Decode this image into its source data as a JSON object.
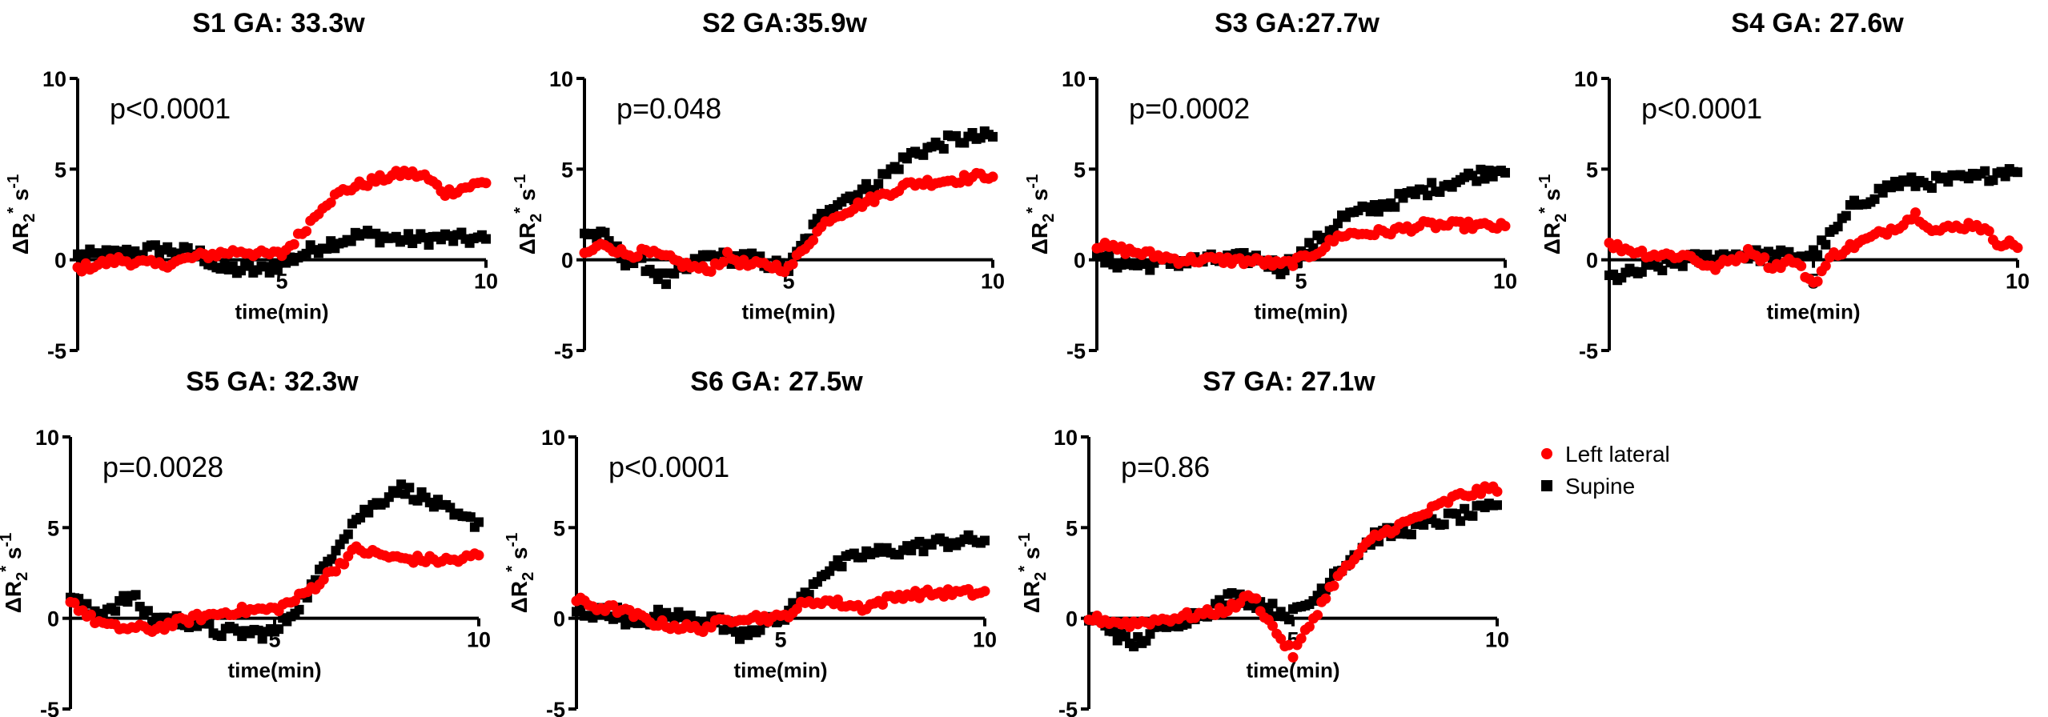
{
  "chart_data": [
    {
      "type": "scatter",
      "title": "S1 GA: 33.3w",
      "pvalue": "p<0.0001",
      "xlabel": "time(min)",
      "ylabel": "ΔR2* s-1",
      "xlim": [
        0,
        10
      ],
      "ylim": [
        -5,
        10
      ],
      "xticks": [
        5,
        10
      ],
      "yticks": [
        -5,
        0,
        5,
        10
      ],
      "series": [
        {
          "name": "Left lateral",
          "marker": "circle",
          "color": "#ff0000",
          "keyframes": [
            [
              0,
              -0.5
            ],
            [
              1,
              0
            ],
            [
              2,
              -0.3
            ],
            [
              3,
              0.2
            ],
            [
              4,
              0.5
            ],
            [
              4.5,
              0.3
            ],
            [
              5,
              0.3
            ],
            [
              5.5,
              1.5
            ],
            [
              6,
              3
            ],
            [
              6.5,
              3.8
            ],
            [
              7,
              4.2
            ],
            [
              8,
              4.8
            ],
            [
              8.5,
              4.6
            ],
            [
              9,
              3.7
            ],
            [
              9.5,
              4
            ],
            [
              10,
              4.3
            ]
          ]
        },
        {
          "name": "Supine",
          "marker": "square",
          "color": "#000000",
          "keyframes": [
            [
              0,
              0.2
            ],
            [
              1,
              0.3
            ],
            [
              2,
              0.6
            ],
            [
              3,
              0.3
            ],
            [
              3.5,
              -0.5
            ],
            [
              4.5,
              -0.6
            ],
            [
              5,
              -0.2
            ],
            [
              5.5,
              0.3
            ],
            [
              6,
              0.8
            ],
            [
              7,
              1.4
            ],
            [
              8,
              1.1
            ],
            [
              9,
              1.2
            ],
            [
              10,
              1.1
            ]
          ]
        }
      ]
    },
    {
      "type": "scatter",
      "title": "S2 GA:35.9w",
      "pvalue": "p=0.048",
      "xlabel": "time(min)",
      "ylabel": "ΔR2* s-1",
      "xlim": [
        0,
        10
      ],
      "ylim": [
        -5,
        10
      ],
      "xticks": [
        5,
        10
      ],
      "yticks": [
        -5,
        0,
        5,
        10
      ],
      "series": [
        {
          "name": "Left lateral",
          "marker": "circle",
          "color": "#ff0000",
          "keyframes": [
            [
              0,
              0.3
            ],
            [
              0.5,
              0.9
            ],
            [
              1,
              0.3
            ],
            [
              1.5,
              0.4
            ],
            [
              2,
              0.1
            ],
            [
              2.5,
              -0.3
            ],
            [
              3,
              -0.6
            ],
            [
              3.5,
              0.2
            ],
            [
              4,
              -0.3
            ],
            [
              4.5,
              -0.3
            ],
            [
              5,
              -0.5
            ],
            [
              5.5,
              1
            ],
            [
              6,
              2.3
            ],
            [
              7,
              3.3
            ],
            [
              8,
              4.2
            ],
            [
              9,
              4.4
            ],
            [
              10,
              4.7
            ]
          ]
        },
        {
          "name": "Supine",
          "marker": "square",
          "color": "#000000",
          "keyframes": [
            [
              0,
              1.5
            ],
            [
              0.5,
              1.2
            ],
            [
              1,
              0
            ],
            [
              1.5,
              -0.3
            ],
            [
              2,
              -1.2
            ],
            [
              2.5,
              -0.5
            ],
            [
              3,
              0.2
            ],
            [
              3.5,
              0.1
            ],
            [
              4,
              0.1
            ],
            [
              4.5,
              -0.2
            ],
            [
              5,
              -0.5
            ],
            [
              5.5,
              1.4
            ],
            [
              6,
              3
            ],
            [
              7,
              4
            ],
            [
              8,
              5.8
            ],
            [
              9,
              6.6
            ],
            [
              10,
              6.8
            ]
          ]
        }
      ]
    },
    {
      "type": "scatter",
      "title": "S3 GA:27.7w",
      "pvalue": "p=0.0002",
      "xlabel": "time(min)",
      "ylabel": "ΔR2* s-1",
      "xlim": [
        0,
        10
      ],
      "ylim": [
        -5,
        10
      ],
      "xticks": [
        5,
        10
      ],
      "yticks": [
        -5,
        0,
        5,
        10
      ],
      "series": [
        {
          "name": "Left lateral",
          "marker": "circle",
          "color": "#ff0000",
          "keyframes": [
            [
              0,
              0.8
            ],
            [
              1,
              0.4
            ],
            [
              2,
              0
            ],
            [
              3,
              0
            ],
            [
              4,
              -0.1
            ],
            [
              4.5,
              -0.3
            ],
            [
              5,
              0
            ],
            [
              5.5,
              0.6
            ],
            [
              6,
              1.4
            ],
            [
              7,
              1.5
            ],
            [
              8,
              1.9
            ],
            [
              9,
              1.9
            ],
            [
              10,
              1.8
            ]
          ]
        },
        {
          "name": "Supine",
          "marker": "square",
          "color": "#000000",
          "keyframes": [
            [
              0,
              0
            ],
            [
              1,
              -0.3
            ],
            [
              2,
              -0.1
            ],
            [
              3,
              0
            ],
            [
              4,
              0.1
            ],
            [
              4.5,
              -0.5
            ],
            [
              5,
              0.3
            ],
            [
              5.5,
              1.2
            ],
            [
              6,
              2.3
            ],
            [
              7,
              3
            ],
            [
              8,
              3.8
            ],
            [
              9,
              4.5
            ],
            [
              10,
              5.1
            ]
          ]
        }
      ]
    },
    {
      "type": "scatter",
      "title": "S4 GA: 27.6w",
      "pvalue": "p<0.0001",
      "xlabel": "time(min)",
      "ylabel": "ΔR2* s-1",
      "xlim": [
        0,
        10
      ],
      "ylim": [
        -5,
        10
      ],
      "xticks": [
        5,
        10
      ],
      "yticks": [
        -5,
        0,
        5,
        10
      ],
      "series": [
        {
          "name": "Left lateral",
          "marker": "circle",
          "color": "#ff0000",
          "keyframes": [
            [
              0,
              0.8
            ],
            [
              1,
              0.3
            ],
            [
              2,
              0.2
            ],
            [
              2.5,
              -0.5
            ],
            [
              3,
              0
            ],
            [
              3.5,
              0.5
            ],
            [
              4,
              -0.4
            ],
            [
              4.5,
              0
            ],
            [
              5,
              -1.3
            ],
            [
              5.5,
              0.3
            ],
            [
              6,
              0.8
            ],
            [
              7,
              1.8
            ],
            [
              7.5,
              2.5
            ],
            [
              8,
              1.6
            ],
            [
              8.5,
              1.8
            ],
            [
              9,
              2
            ],
            [
              9.5,
              1
            ],
            [
              10,
              0.8
            ]
          ]
        },
        {
          "name": "Supine",
          "marker": "square",
          "color": "#000000",
          "keyframes": [
            [
              0,
              -1
            ],
            [
              0.5,
              -0.8
            ],
            [
              1,
              -0.5
            ],
            [
              2,
              0
            ],
            [
              3,
              0.3
            ],
            [
              4,
              0.2
            ],
            [
              5,
              0.3
            ],
            [
              5.5,
              1.5
            ],
            [
              6,
              3
            ],
            [
              7,
              4.2
            ],
            [
              8,
              4.3
            ],
            [
              9,
              4.5
            ],
            [
              10,
              5.1
            ]
          ]
        }
      ]
    },
    {
      "type": "scatter",
      "title": "S5 GA: 32.3w",
      "pvalue": "p=0.0028",
      "xlabel": "time(min)",
      "ylabel": "ΔR2* s-1",
      "xlim": [
        0,
        10
      ],
      "ylim": [
        -5,
        10
      ],
      "xticks": [
        5,
        10
      ],
      "yticks": [
        -5,
        0,
        5,
        10
      ],
      "series": [
        {
          "name": "Left lateral",
          "marker": "circle",
          "color": "#ff0000",
          "keyframes": [
            [
              0,
              1
            ],
            [
              0.5,
              0
            ],
            [
              1,
              -0.5
            ],
            [
              2,
              -0.6
            ],
            [
              3,
              0
            ],
            [
              4,
              0.4
            ],
            [
              5,
              0.5
            ],
            [
              5.5,
              1
            ],
            [
              6,
              1.8
            ],
            [
              6.5,
              2.8
            ],
            [
              7,
              3.8
            ],
            [
              8,
              3.3
            ],
            [
              9,
              3.2
            ],
            [
              9.5,
              3.2
            ],
            [
              10,
              3.5
            ]
          ]
        },
        {
          "name": "Supine",
          "marker": "square",
          "color": "#000000",
          "keyframes": [
            [
              0,
              1.2
            ],
            [
              0.5,
              0.3
            ],
            [
              1,
              0.6
            ],
            [
              1.5,
              1.2
            ],
            [
              2,
              0
            ],
            [
              3,
              -0.2
            ],
            [
              3.5,
              -0.7
            ],
            [
              4,
              -0.8
            ],
            [
              5,
              -0.8
            ],
            [
              5.5,
              0.5
            ],
            [
              6,
              2
            ],
            [
              6.5,
              4
            ],
            [
              7,
              5.5
            ],
            [
              7.5,
              6.3
            ],
            [
              8,
              7.2
            ],
            [
              8.5,
              6.8
            ],
            [
              9,
              6.2
            ],
            [
              9.5,
              5.5
            ],
            [
              10,
              5.3
            ]
          ]
        }
      ]
    },
    {
      "type": "scatter",
      "title": "S6 GA: 27.5w",
      "pvalue": "p<0.0001",
      "xlabel": "time(min)",
      "ylabel": "ΔR2* s-1",
      "xlim": [
        0,
        10
      ],
      "ylim": [
        -5,
        10
      ],
      "xticks": [
        5,
        10
      ],
      "yticks": [
        -5,
        0,
        5,
        10
      ],
      "series": [
        {
          "name": "Left lateral",
          "marker": "circle",
          "color": "#ff0000",
          "keyframes": [
            [
              0,
              1
            ],
            [
              0.5,
              0.6
            ],
            [
              1,
              0.5
            ],
            [
              2,
              -0.3
            ],
            [
              3,
              -0.6
            ],
            [
              4,
              0.1
            ],
            [
              5,
              0
            ],
            [
              5.5,
              0.7
            ],
            [
              6,
              1
            ],
            [
              7,
              0.6
            ],
            [
              8,
              1.3
            ],
            [
              9,
              1.4
            ],
            [
              10,
              1.4
            ]
          ]
        },
        {
          "name": "Supine",
          "marker": "square",
          "color": "#000000",
          "keyframes": [
            [
              0,
              0.3
            ],
            [
              1,
              0.3
            ],
            [
              1.5,
              -0.5
            ],
            [
              2,
              0.2
            ],
            [
              3,
              0
            ],
            [
              3.5,
              -0.2
            ],
            [
              4,
              -0.8
            ],
            [
              5,
              0
            ],
            [
              5.5,
              1
            ],
            [
              6,
              2.5
            ],
            [
              7,
              3.5
            ],
            [
              8,
              3.8
            ],
            [
              9,
              4.2
            ],
            [
              10,
              4.3
            ]
          ]
        }
      ]
    },
    {
      "type": "scatter",
      "title": "S7 GA: 27.1w",
      "pvalue": "p=0.86",
      "xlabel": "time(min)",
      "ylabel": "ΔR2* s-1",
      "xlim": [
        0,
        10
      ],
      "ylim": [
        -5,
        10
      ],
      "xticks": [
        5,
        10
      ],
      "yticks": [
        -5,
        0,
        5,
        10
      ],
      "series": [
        {
          "name": "Left lateral",
          "marker": "circle",
          "color": "#ff0000",
          "keyframes": [
            [
              0,
              0
            ],
            [
              1,
              -0.3
            ],
            [
              2,
              0
            ],
            [
              3,
              0.3
            ],
            [
              3.5,
              0.6
            ],
            [
              4,
              1.3
            ],
            [
              4.5,
              -0.5
            ],
            [
              5,
              -2
            ],
            [
              5.5,
              0
            ],
            [
              6,
              2
            ],
            [
              7,
              4.5
            ],
            [
              8,
              5.5
            ],
            [
              9,
              6.7
            ],
            [
              10,
              7.2
            ]
          ]
        },
        {
          "name": "Supine",
          "marker": "square",
          "color": "#000000",
          "keyframes": [
            [
              0,
              0
            ],
            [
              0.5,
              -0.5
            ],
            [
              1,
              -1.5
            ],
            [
              2,
              -0.3
            ],
            [
              3,
              0.5
            ],
            [
              3.5,
              1.2
            ],
            [
              4,
              1
            ],
            [
              4.5,
              0.5
            ],
            [
              5,
              0.2
            ],
            [
              5.5,
              1
            ],
            [
              6,
              2.5
            ],
            [
              7,
              4.5
            ],
            [
              8,
              5
            ],
            [
              9,
              5.6
            ],
            [
              10,
              6.1
            ]
          ]
        }
      ]
    }
  ],
  "legend": {
    "items": [
      {
        "label": "Left lateral",
        "marker": "circle",
        "color": "#ff0000"
      },
      {
        "label": "Supine",
        "marker": "square",
        "color": "#000000"
      }
    ]
  }
}
